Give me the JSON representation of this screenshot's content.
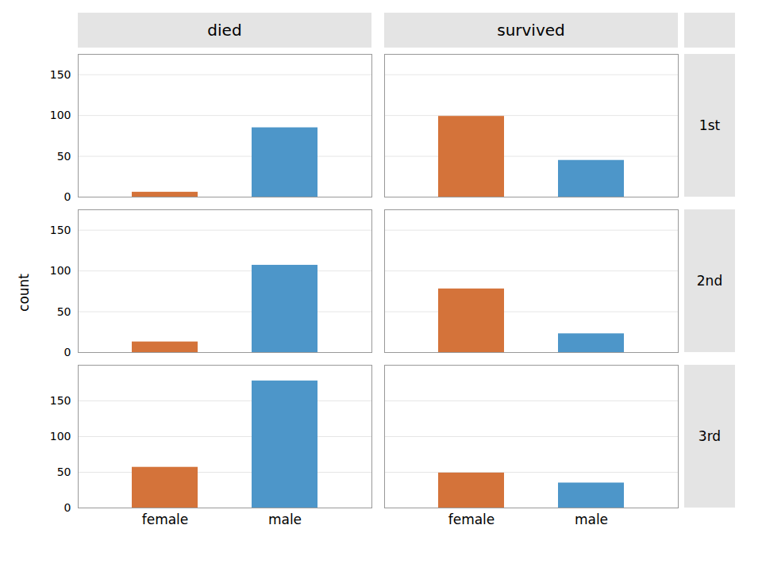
{
  "chart_data": {
    "type": "bar",
    "ylabel": "count",
    "categories": [
      "female",
      "male"
    ],
    "colors": [
      "#d4733a",
      "#4d96c9"
    ],
    "yticks": [
      0,
      50,
      100,
      150
    ],
    "grid": true,
    "facet_cols": [
      "died",
      "survived"
    ],
    "facet_rows": [
      "1st",
      "2nd",
      "3rd"
    ],
    "panels": [
      {
        "col": "died",
        "row": "1st",
        "values": [
          6,
          85
        ],
        "ylim": [
          0,
          175
        ],
        "tick_labels": "y"
      },
      {
        "col": "survived",
        "row": "1st",
        "values": [
          99,
          45
        ],
        "ylim": [
          0,
          175
        ],
        "tick_labels": false
      },
      {
        "col": "died",
        "row": "2nd",
        "values": [
          13,
          107
        ],
        "ylim": [
          0,
          175
        ],
        "tick_labels": "y"
      },
      {
        "col": "survived",
        "row": "2nd",
        "values": [
          78,
          23
        ],
        "ylim": [
          0,
          175
        ],
        "tick_labels": false
      },
      {
        "col": "died",
        "row": "3rd",
        "values": [
          57,
          178
        ],
        "ylim": [
          0,
          200
        ],
        "tick_labels": true
      },
      {
        "col": "survived",
        "row": "3rd",
        "values": [
          49,
          35
        ],
        "ylim": [
          0,
          200
        ],
        "tick_labels": "x"
      }
    ]
  }
}
